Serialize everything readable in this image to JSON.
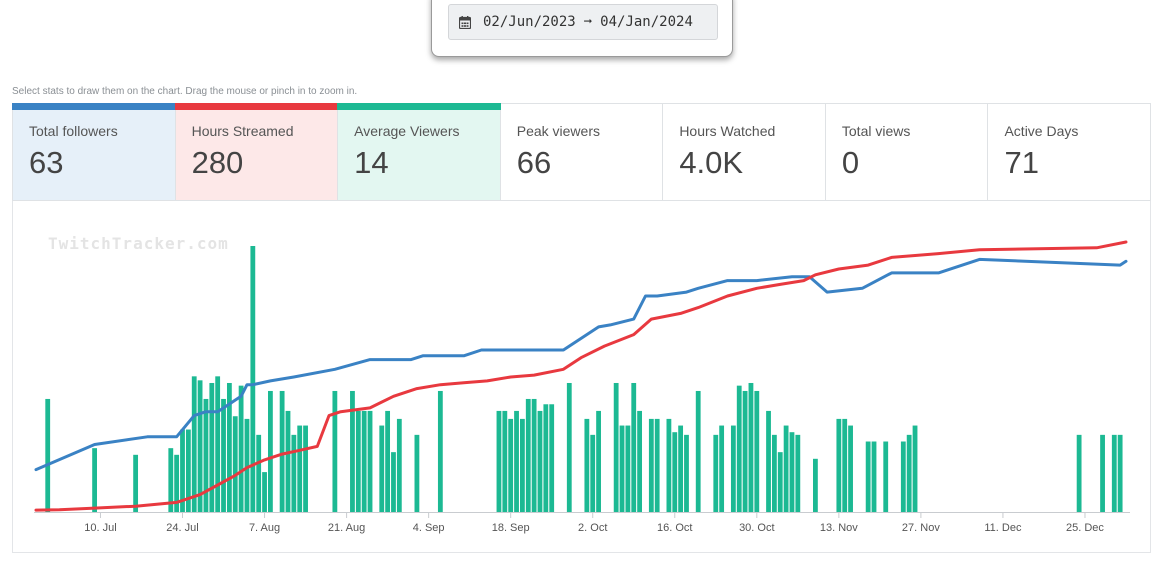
{
  "date_range": {
    "start": "02/Jun/2023",
    "arrow": "➞",
    "end": "04/Jan/2024"
  },
  "hint": "Select stats to draw them on the chart. Drag the mouse or pinch in to zoom in.",
  "stats": [
    {
      "label": "Total followers",
      "value": "63",
      "selected": true,
      "color": "#3a82c4",
      "bg": "#e6f0f9"
    },
    {
      "label": "Hours Streamed",
      "value": "280",
      "selected": true,
      "color": "#e8393f",
      "bg": "#fde8e8"
    },
    {
      "label": "Average Viewers",
      "value": "14",
      "selected": true,
      "color": "#1cb993",
      "bg": "#e3f7f1"
    },
    {
      "label": "Peak viewers",
      "value": "66",
      "selected": false
    },
    {
      "label": "Hours Watched",
      "value": "4.0K",
      "selected": false
    },
    {
      "label": "Total views",
      "value": "0",
      "selected": false
    },
    {
      "label": "Active Days",
      "value": "71",
      "selected": false
    }
  ],
  "watermark": "TwitchTracker.com",
  "chart_data": {
    "type": "bar+line",
    "x_start": "2023-06-29",
    "x_end": "2024-01-01",
    "x_tick_labels": [
      {
        "date": "2023-07-10",
        "label": "10. Jul"
      },
      {
        "date": "2023-07-24",
        "label": "24. Jul"
      },
      {
        "date": "2023-08-07",
        "label": "7. Aug"
      },
      {
        "date": "2023-08-21",
        "label": "21. Aug"
      },
      {
        "date": "2023-09-04",
        "label": "4. Sep"
      },
      {
        "date": "2023-09-18",
        "label": "18. Sep"
      },
      {
        "date": "2023-10-02",
        "label": "2. Oct"
      },
      {
        "date": "2023-10-16",
        "label": "16. Oct"
      },
      {
        "date": "2023-10-30",
        "label": "30. Oct"
      },
      {
        "date": "2023-11-13",
        "label": "13. Nov"
      },
      {
        "date": "2023-11-27",
        "label": "27. Nov"
      },
      {
        "date": "2023-12-11",
        "label": "11. Dec"
      },
      {
        "date": "2023-12-25",
        "label": "25. Dec"
      }
    ],
    "bar_color": "#1cb993",
    "bar_ylim": [
      0,
      20
    ],
    "bars": [
      [
        "2023-07-01",
        8.5
      ],
      [
        "2023-07-09",
        4.8
      ],
      [
        "2023-07-16",
        4.3
      ],
      [
        "2023-07-22",
        4.8
      ],
      [
        "2023-07-23",
        4.3
      ],
      [
        "2023-07-24",
        6.2
      ],
      [
        "2023-07-25",
        6.2
      ],
      [
        "2023-07-26",
        10.2
      ],
      [
        "2023-07-27",
        9.9
      ],
      [
        "2023-07-28",
        8.5
      ],
      [
        "2023-07-29",
        9.7
      ],
      [
        "2023-07-30",
        10.2
      ],
      [
        "2023-07-31",
        8.5
      ],
      [
        "2023-08-01",
        9.7
      ],
      [
        "2023-08-02",
        7.2
      ],
      [
        "2023-08-03",
        9.5
      ],
      [
        "2023-08-04",
        7.0
      ],
      [
        "2023-08-05",
        20.0
      ],
      [
        "2023-08-06",
        5.8
      ],
      [
        "2023-08-07",
        3.0
      ],
      [
        "2023-08-08",
        9.1
      ],
      [
        "2023-08-10",
        9.1
      ],
      [
        "2023-08-11",
        7.6
      ],
      [
        "2023-08-12",
        5.8
      ],
      [
        "2023-08-13",
        6.5
      ],
      [
        "2023-08-14",
        6.5
      ],
      [
        "2023-08-19",
        9.1
      ],
      [
        "2023-08-22",
        9.1
      ],
      [
        "2023-08-23",
        7.6
      ],
      [
        "2023-08-24",
        7.6
      ],
      [
        "2023-08-25",
        7.6
      ],
      [
        "2023-08-27",
        6.5
      ],
      [
        "2023-08-28",
        7.6
      ],
      [
        "2023-08-29",
        4.5
      ],
      [
        "2023-08-30",
        7.0
      ],
      [
        "2023-09-02",
        5.8
      ],
      [
        "2023-09-06",
        9.1
      ],
      [
        "2023-09-16",
        7.6
      ],
      [
        "2023-09-17",
        7.6
      ],
      [
        "2023-09-18",
        7.0
      ],
      [
        "2023-09-19",
        7.6
      ],
      [
        "2023-09-20",
        7.0
      ],
      [
        "2023-09-21",
        8.5
      ],
      [
        "2023-09-22",
        8.5
      ],
      [
        "2023-09-23",
        7.6
      ],
      [
        "2023-09-24",
        8.1
      ],
      [
        "2023-09-25",
        8.1
      ],
      [
        "2023-09-28",
        9.7
      ],
      [
        "2023-10-01",
        7.0
      ],
      [
        "2023-10-02",
        5.8
      ],
      [
        "2023-10-03",
        7.6
      ],
      [
        "2023-10-06",
        9.7
      ],
      [
        "2023-10-07",
        6.5
      ],
      [
        "2023-10-08",
        6.5
      ],
      [
        "2023-10-09",
        9.7
      ],
      [
        "2023-10-10",
        7.6
      ],
      [
        "2023-10-12",
        7.0
      ],
      [
        "2023-10-13",
        7.0
      ],
      [
        "2023-10-15",
        7.0
      ],
      [
        "2023-10-16",
        6.0
      ],
      [
        "2023-10-17",
        6.5
      ],
      [
        "2023-10-18",
        5.8
      ],
      [
        "2023-10-20",
        9.1
      ],
      [
        "2023-10-23",
        5.8
      ],
      [
        "2023-10-24",
        6.5
      ],
      [
        "2023-10-26",
        6.5
      ],
      [
        "2023-10-27",
        9.5
      ],
      [
        "2023-10-28",
        9.1
      ],
      [
        "2023-10-29",
        9.7
      ],
      [
        "2023-10-30",
        9.1
      ],
      [
        "2023-11-01",
        7.6
      ],
      [
        "2023-11-02",
        5.8
      ],
      [
        "2023-11-03",
        4.5
      ],
      [
        "2023-11-04",
        6.5
      ],
      [
        "2023-11-05",
        6.0
      ],
      [
        "2023-11-06",
        5.8
      ],
      [
        "2023-11-09",
        4.0
      ],
      [
        "2023-11-13",
        7.0
      ],
      [
        "2023-11-14",
        7.0
      ],
      [
        "2023-11-15",
        6.5
      ],
      [
        "2023-11-18",
        5.3
      ],
      [
        "2023-11-19",
        5.3
      ],
      [
        "2023-11-21",
        5.3
      ],
      [
        "2023-11-24",
        5.3
      ],
      [
        "2023-11-25",
        5.8
      ],
      [
        "2023-11-26",
        6.5
      ],
      [
        "2023-12-24",
        5.8
      ],
      [
        "2023-12-28",
        5.8
      ],
      [
        "2023-12-30",
        5.8
      ],
      [
        "2023-12-31",
        5.8
      ]
    ],
    "line_ylim": [
      0,
      70
    ],
    "series": [
      {
        "name": "Total followers",
        "color": "#3a82c4",
        "points": [
          [
            "2023-06-29",
            11
          ],
          [
            "2023-07-09",
            17.5
          ],
          [
            "2023-07-18",
            19.5
          ],
          [
            "2023-07-23",
            19.5
          ],
          [
            "2023-07-26",
            25
          ],
          [
            "2023-07-28",
            26
          ],
          [
            "2023-07-30",
            26
          ],
          [
            "2023-08-01",
            28
          ],
          [
            "2023-08-02",
            29
          ],
          [
            "2023-08-03",
            30
          ],
          [
            "2023-08-04",
            33
          ],
          [
            "2023-08-05",
            33
          ],
          [
            "2023-08-08",
            34
          ],
          [
            "2023-08-12",
            35
          ],
          [
            "2023-08-19",
            37
          ],
          [
            "2023-08-25",
            39.5
          ],
          [
            "2023-09-01",
            39.5
          ],
          [
            "2023-09-03",
            40.5
          ],
          [
            "2023-09-10",
            40.5
          ],
          [
            "2023-09-13",
            42
          ],
          [
            "2023-09-27",
            42
          ],
          [
            "2023-10-03",
            48
          ],
          [
            "2023-10-05",
            48.5
          ],
          [
            "2023-10-09",
            50
          ],
          [
            "2023-10-11",
            56
          ],
          [
            "2023-10-13",
            56
          ],
          [
            "2023-10-18",
            57
          ],
          [
            "2023-10-20",
            58
          ],
          [
            "2023-10-25",
            60
          ],
          [
            "2023-10-26",
            60
          ],
          [
            "2023-10-30",
            60
          ],
          [
            "2023-11-05",
            61
          ],
          [
            "2023-11-08",
            61
          ],
          [
            "2023-11-11",
            57
          ],
          [
            "2023-11-17",
            58
          ],
          [
            "2023-11-22",
            62
          ],
          [
            "2023-11-30",
            62
          ],
          [
            "2023-12-07",
            65.5
          ],
          [
            "2023-12-31",
            64
          ],
          [
            "2024-01-01",
            65
          ]
        ]
      },
      {
        "name": "Hours Streamed",
        "color": "#e8393f",
        "points": [
          [
            "2023-06-29",
            0.5
          ],
          [
            "2023-07-03",
            0.6
          ],
          [
            "2023-07-09",
            1
          ],
          [
            "2023-07-16",
            1.5
          ],
          [
            "2023-07-23",
            2.5
          ],
          [
            "2023-07-27",
            4.5
          ],
          [
            "2023-07-30",
            7
          ],
          [
            "2023-08-02",
            9.5
          ],
          [
            "2023-08-04",
            11.5
          ],
          [
            "2023-08-07",
            13.5
          ],
          [
            "2023-08-10",
            15
          ],
          [
            "2023-08-13",
            16
          ],
          [
            "2023-08-16",
            17
          ],
          [
            "2023-08-18",
            25
          ],
          [
            "2023-08-20",
            26
          ],
          [
            "2023-08-25",
            27
          ],
          [
            "2023-08-29",
            30
          ],
          [
            "2023-09-02",
            32
          ],
          [
            "2023-09-06",
            33
          ],
          [
            "2023-09-10",
            33.5
          ],
          [
            "2023-09-14",
            34
          ],
          [
            "2023-09-18",
            35
          ],
          [
            "2023-09-22",
            35.5
          ],
          [
            "2023-09-27",
            37
          ],
          [
            "2023-09-30",
            40
          ],
          [
            "2023-10-04",
            43
          ],
          [
            "2023-10-09",
            46
          ],
          [
            "2023-10-12",
            50
          ],
          [
            "2023-10-17",
            51.5
          ],
          [
            "2023-10-20",
            53
          ],
          [
            "2023-10-25",
            56
          ],
          [
            "2023-10-30",
            58
          ],
          [
            "2023-11-03",
            59
          ],
          [
            "2023-11-07",
            60
          ],
          [
            "2023-11-09",
            61.5
          ],
          [
            "2023-11-13",
            63
          ],
          [
            "2023-11-18",
            64
          ],
          [
            "2023-11-22",
            66
          ],
          [
            "2023-11-30",
            67
          ],
          [
            "2023-12-07",
            68
          ],
          [
            "2023-12-27",
            68.5
          ],
          [
            "2024-01-01",
            70
          ]
        ]
      }
    ]
  }
}
